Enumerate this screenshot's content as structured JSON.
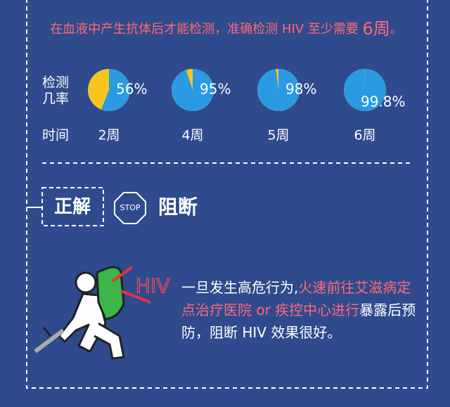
{
  "notice": {
    "text": "在血液中产生抗体后才能检测，准确检测 HIV 至少需要 ",
    "highlight": "6周",
    "end": "。"
  },
  "chart_data": {
    "type": "pie",
    "row_label_1": "检测",
    "row_label_2": "几率",
    "time_label": "时间",
    "categories": [
      "2周",
      "4周",
      "5周",
      "6周"
    ],
    "values": [
      56,
      95,
      98,
      99.8
    ],
    "value_labels": [
      "56%",
      "95%",
      "98%",
      "99.8%"
    ],
    "color": "#2a9be3",
    "rest_color": "#f7c51f"
  },
  "answer": {
    "label": "正解",
    "stop": "STOP",
    "title": "阻断"
  },
  "advice": {
    "hiv": "HIV",
    "part1": "一旦发生高危行为,",
    "part2": "火速前往艾滋病定点治疗医院 or 疾控中心进行",
    "part3": "暴露后预防，阻断 HIV 效果很好。"
  }
}
